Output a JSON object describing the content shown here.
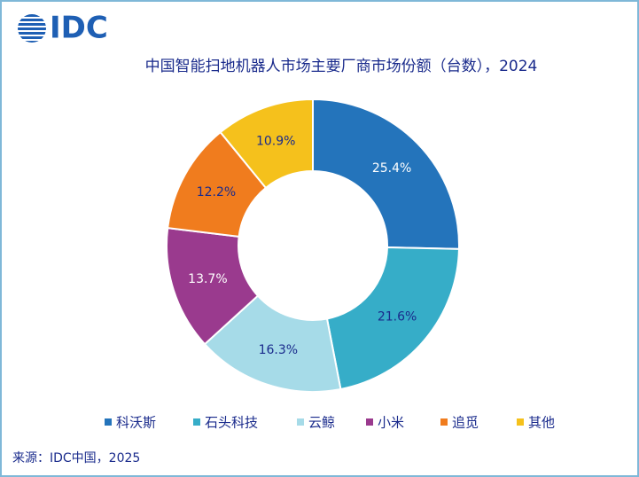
{
  "logo": "IDC",
  "chart_data": {
    "type": "donut",
    "title": "中国智能扫地机器人市场主要厂商市场份额（台数），2024",
    "categories": [
      "科沃斯",
      "石头科技",
      "云鲸",
      "小米",
      "追觅",
      "其他"
    ],
    "values": [
      25.4,
      21.6,
      16.3,
      13.7,
      12.2,
      10.9
    ],
    "value_labels": [
      "25.4%",
      "21.6%",
      "16.3%",
      "13.7%",
      "12.2%",
      "10.9%"
    ],
    "colors": [
      "#2474bb",
      "#36adc8",
      "#a6dbe8",
      "#9a3a8e",
      "#f07c1e",
      "#f5c11c"
    ],
    "legend": "bottom"
  },
  "source": "来源：IDC中国，2025"
}
